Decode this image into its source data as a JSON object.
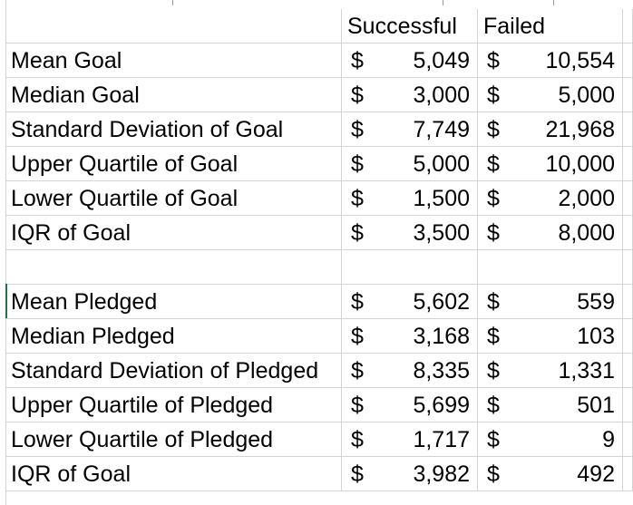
{
  "header": {
    "successful": "Successful",
    "failed": "Failed"
  },
  "currency_symbol": "$",
  "goal_rows": [
    {
      "label": "Mean Goal",
      "successful": "5,049",
      "failed": "10,554"
    },
    {
      "label": "Median Goal",
      "successful": "3,000",
      "failed": "5,000"
    },
    {
      "label": "Standard Deviation of Goal",
      "successful": "7,749",
      "failed": "21,968"
    },
    {
      "label": "Upper Quartile of Goal",
      "successful": "5,000",
      "failed": "10,000"
    },
    {
      "label": "Lower Quartile of Goal",
      "successful": "1,500",
      "failed": "2,000"
    },
    {
      "label": "IQR of Goal",
      "successful": "3,500",
      "failed": "8,000"
    }
  ],
  "pledged_rows": [
    {
      "label": "Mean Pledged",
      "successful": "5,602",
      "failed": "559"
    },
    {
      "label": "Median Pledged",
      "successful": "3,168",
      "failed": "103"
    },
    {
      "label": "Standard Deviation of Pledged",
      "successful": "8,335",
      "failed": "1,331"
    },
    {
      "label": "Upper Quartile of Pledged",
      "successful": "5,699",
      "failed": "501"
    },
    {
      "label": "Lower Quartile of Pledged",
      "successful": "1,717",
      "failed": "9"
    },
    {
      "label": "IQR of Goal",
      "successful": "3,982",
      "failed": "492"
    }
  ]
}
